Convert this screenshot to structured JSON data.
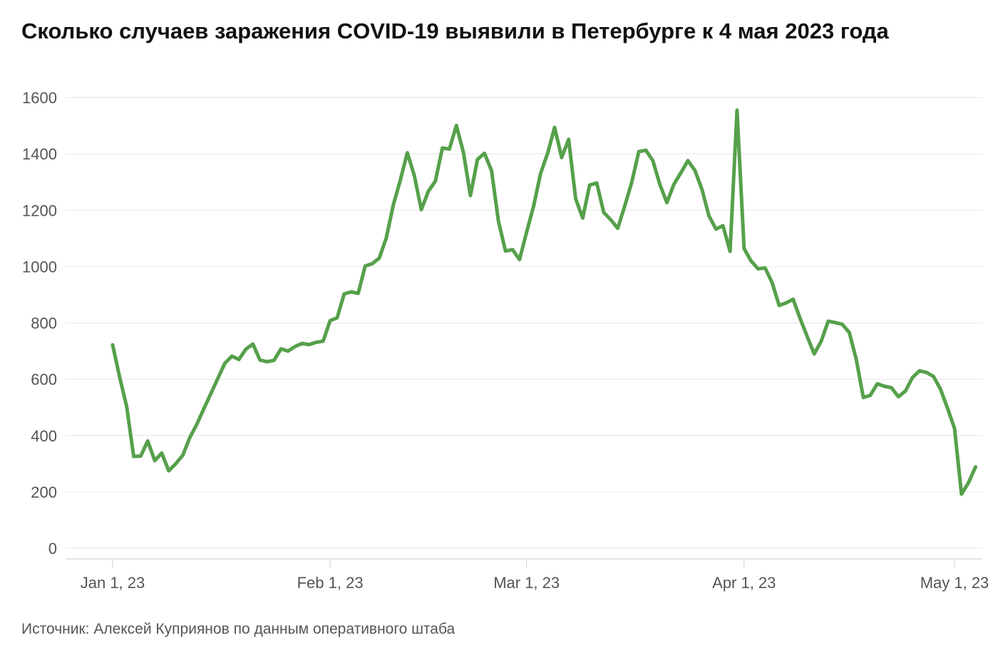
{
  "chart_data": {
    "type": "line",
    "title": "Сколько случаев заражения COVID-19 выявили в Петербурге к 4 мая 2023 года",
    "source": "Источник: Алексей Куприянов по данным оперативного штаба",
    "xlabel": "",
    "ylabel": "",
    "ylim": [
      0,
      1600
    ],
    "y_ticks": [
      0,
      200,
      400,
      600,
      800,
      1000,
      1200,
      1400,
      1600
    ],
    "x_ticks": [
      {
        "date": "2023-01-01",
        "label": "Jan 1, 23"
      },
      {
        "date": "2023-02-01",
        "label": "Feb 1, 23"
      },
      {
        "date": "2023-03-01",
        "label": "Mar 1, 23"
      },
      {
        "date": "2023-04-01",
        "label": "Apr 1, 23"
      },
      {
        "date": "2023-05-01",
        "label": "May 1, 23"
      }
    ],
    "grid": true,
    "line_color": "#56a04b",
    "series": [
      {
        "values": [
          [
            "2023-01-01",
            722
          ],
          [
            "2023-01-02",
            608
          ],
          [
            "2023-01-03",
            503
          ],
          [
            "2023-01-04",
            326
          ],
          [
            "2023-01-05",
            327
          ],
          [
            "2023-01-06",
            381
          ],
          [
            "2023-01-07",
            311
          ],
          [
            "2023-01-08",
            338
          ],
          [
            "2023-01-09",
            275
          ],
          [
            "2023-01-10",
            300
          ],
          [
            "2023-01-11",
            330
          ],
          [
            "2023-01-12",
            393
          ],
          [
            "2023-01-13",
            440
          ],
          [
            "2023-01-14",
            495
          ],
          [
            "2023-01-15",
            549
          ],
          [
            "2023-01-16",
            603
          ],
          [
            "2023-01-17",
            657
          ],
          [
            "2023-01-18",
            682
          ],
          [
            "2023-01-19",
            670
          ],
          [
            "2023-01-20",
            707
          ],
          [
            "2023-01-21",
            725
          ],
          [
            "2023-01-22",
            668
          ],
          [
            "2023-01-23",
            662
          ],
          [
            "2023-01-24",
            667
          ],
          [
            "2023-01-25",
            708
          ],
          [
            "2023-01-26",
            700
          ],
          [
            "2023-01-27",
            716
          ],
          [
            "2023-01-28",
            727
          ],
          [
            "2023-01-29",
            723
          ],
          [
            "2023-01-30",
            731
          ],
          [
            "2023-01-31",
            735
          ],
          [
            "2023-02-01",
            808
          ],
          [
            "2023-02-02",
            818
          ],
          [
            "2023-02-03",
            903
          ],
          [
            "2023-02-04",
            910
          ],
          [
            "2023-02-05",
            905
          ],
          [
            "2023-02-06",
            1002
          ],
          [
            "2023-02-07",
            1010
          ],
          [
            "2023-02-08",
            1030
          ],
          [
            "2023-02-09",
            1101
          ],
          [
            "2023-02-10",
            1218
          ],
          [
            "2023-02-11",
            1306
          ],
          [
            "2023-02-12",
            1404
          ],
          [
            "2023-02-13",
            1323
          ],
          [
            "2023-02-14",
            1202
          ],
          [
            "2023-02-15",
            1267
          ],
          [
            "2023-02-16",
            1303
          ],
          [
            "2023-02-17",
            1421
          ],
          [
            "2023-02-18",
            1417
          ],
          [
            "2023-02-19",
            1501
          ],
          [
            "2023-02-20",
            1405
          ],
          [
            "2023-02-21",
            1252
          ],
          [
            "2023-02-22",
            1380
          ],
          [
            "2023-02-23",
            1402
          ],
          [
            "2023-02-24",
            1341
          ],
          [
            "2023-02-25",
            1160
          ],
          [
            "2023-02-26",
            1055
          ],
          [
            "2023-02-27",
            1060
          ],
          [
            "2023-02-28",
            1025
          ],
          [
            "2023-03-01",
            1122
          ],
          [
            "2023-03-02",
            1214
          ],
          [
            "2023-03-03",
            1330
          ],
          [
            "2023-03-04",
            1402
          ],
          [
            "2023-03-05",
            1494
          ],
          [
            "2023-03-06",
            1387
          ],
          [
            "2023-03-07",
            1452
          ],
          [
            "2023-03-08",
            1241
          ],
          [
            "2023-03-09",
            1172
          ],
          [
            "2023-03-10",
            1289
          ],
          [
            "2023-03-11",
            1297
          ],
          [
            "2023-03-12",
            1192
          ],
          [
            "2023-03-13",
            1166
          ],
          [
            "2023-03-14",
            1136
          ],
          [
            "2023-03-15",
            1215
          ],
          [
            "2023-03-16",
            1300
          ],
          [
            "2023-03-17",
            1408
          ],
          [
            "2023-03-18",
            1413
          ],
          [
            "2023-03-19",
            1376
          ],
          [
            "2023-03-20",
            1292
          ],
          [
            "2023-03-21",
            1227
          ],
          [
            "2023-03-22",
            1292
          ],
          [
            "2023-03-23",
            1333
          ],
          [
            "2023-03-24",
            1376
          ],
          [
            "2023-03-25",
            1341
          ],
          [
            "2023-03-26",
            1274
          ],
          [
            "2023-03-27",
            1180
          ],
          [
            "2023-03-28",
            1133
          ],
          [
            "2023-03-29",
            1145
          ],
          [
            "2023-03-30",
            1054
          ],
          [
            "2023-03-31",
            1555
          ],
          [
            "2023-04-01",
            1064
          ],
          [
            "2023-04-02",
            1020
          ],
          [
            "2023-04-03",
            992
          ],
          [
            "2023-04-04",
            995
          ],
          [
            "2023-04-05",
            943
          ],
          [
            "2023-04-06",
            862
          ],
          [
            "2023-04-07",
            871
          ],
          [
            "2023-04-08",
            884
          ],
          [
            "2023-04-09",
            815
          ],
          [
            "2023-04-10",
            752
          ],
          [
            "2023-04-11",
            690
          ],
          [
            "2023-04-12",
            735
          ],
          [
            "2023-04-13",
            806
          ],
          [
            "2023-04-14",
            801
          ],
          [
            "2023-04-15",
            795
          ],
          [
            "2023-04-16",
            766
          ],
          [
            "2023-04-17",
            670
          ],
          [
            "2023-04-18",
            535
          ],
          [
            "2023-04-19",
            543
          ],
          [
            "2023-04-20",
            584
          ],
          [
            "2023-04-21",
            575
          ],
          [
            "2023-04-22",
            570
          ],
          [
            "2023-04-23",
            538
          ],
          [
            "2023-04-24",
            558
          ],
          [
            "2023-04-25",
            606
          ],
          [
            "2023-04-26",
            630
          ],
          [
            "2023-04-27",
            624
          ],
          [
            "2023-04-28",
            610
          ],
          [
            "2023-04-29",
            565
          ],
          [
            "2023-04-30",
            497
          ],
          [
            "2023-05-01",
            426
          ],
          [
            "2023-05-02",
            192
          ],
          [
            "2023-05-03",
            233
          ],
          [
            "2023-05-04",
            289
          ]
        ]
      }
    ]
  }
}
